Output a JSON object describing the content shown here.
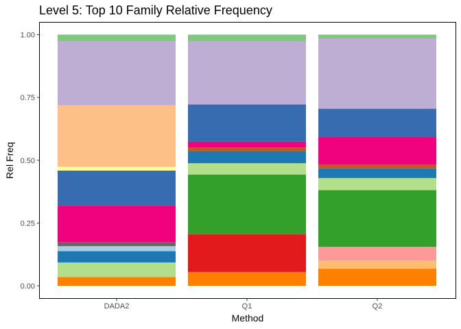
{
  "chart_data": {
    "type": "bar",
    "stacked": true,
    "title": "Level 5: Top 10 Family Relative Frequency",
    "xlabel": "Method",
    "ylabel": "Rel Freq",
    "categories": [
      "DADA2",
      "Q1",
      "Q2"
    ],
    "ylim": [
      0,
      1
    ],
    "yticks": [
      "0.00",
      "0.25",
      "0.50",
      "0.75",
      "1.00"
    ],
    "ytick_values": [
      0,
      0.25,
      0.5,
      0.75,
      1.0
    ],
    "grid": false,
    "legend": "none",
    "stacks": [
      [
        {
          "value": 0.035,
          "color": "#FF7F00"
        },
        {
          "value": 0.058,
          "color": "#B2DF8A"
        },
        {
          "value": 0.045,
          "color": "#1F78B4"
        },
        {
          "value": 0.02,
          "color": "#A6CEE3"
        },
        {
          "value": 0.016,
          "color": "#666666"
        },
        {
          "value": 0.145,
          "color": "#F0027F"
        },
        {
          "value": 0.14,
          "color": "#386CB0"
        },
        {
          "value": 0.015,
          "color": "#FFFF99"
        },
        {
          "value": 0.245,
          "color": "#FDC086"
        },
        {
          "value": 0.255,
          "color": "#BEAED4"
        },
        {
          "value": 0.026,
          "color": "#7FC97F"
        }
      ],
      [
        {
          "value": 0.055,
          "color": "#FF7F00"
        },
        {
          "value": 0.15,
          "color": "#E31A1C"
        },
        {
          "value": 0.238,
          "color": "#33A02C"
        },
        {
          "value": 0.045,
          "color": "#B2DF8A"
        },
        {
          "value": 0.048,
          "color": "#1F78B4"
        },
        {
          "value": 0.015,
          "color": "#BF5B17"
        },
        {
          "value": 0.023,
          "color": "#F0027F"
        },
        {
          "value": 0.148,
          "color": "#386CB0"
        },
        {
          "value": 0.252,
          "color": "#BEAED4"
        },
        {
          "value": 0.026,
          "color": "#7FC97F"
        }
      ],
      [
        {
          "value": 0.068,
          "color": "#FF7F00"
        },
        {
          "value": 0.032,
          "color": "#FDBF6F"
        },
        {
          "value": 0.055,
          "color": "#FB9A99"
        },
        {
          "value": 0.226,
          "color": "#33A02C"
        },
        {
          "value": 0.048,
          "color": "#B2DF8A"
        },
        {
          "value": 0.038,
          "color": "#1F78B4"
        },
        {
          "value": 0.015,
          "color": "#BF5B17"
        },
        {
          "value": 0.11,
          "color": "#F0027F"
        },
        {
          "value": 0.113,
          "color": "#386CB0"
        },
        {
          "value": 0.28,
          "color": "#BEAED4"
        },
        {
          "value": 0.015,
          "color": "#7FC97F"
        }
      ]
    ]
  }
}
